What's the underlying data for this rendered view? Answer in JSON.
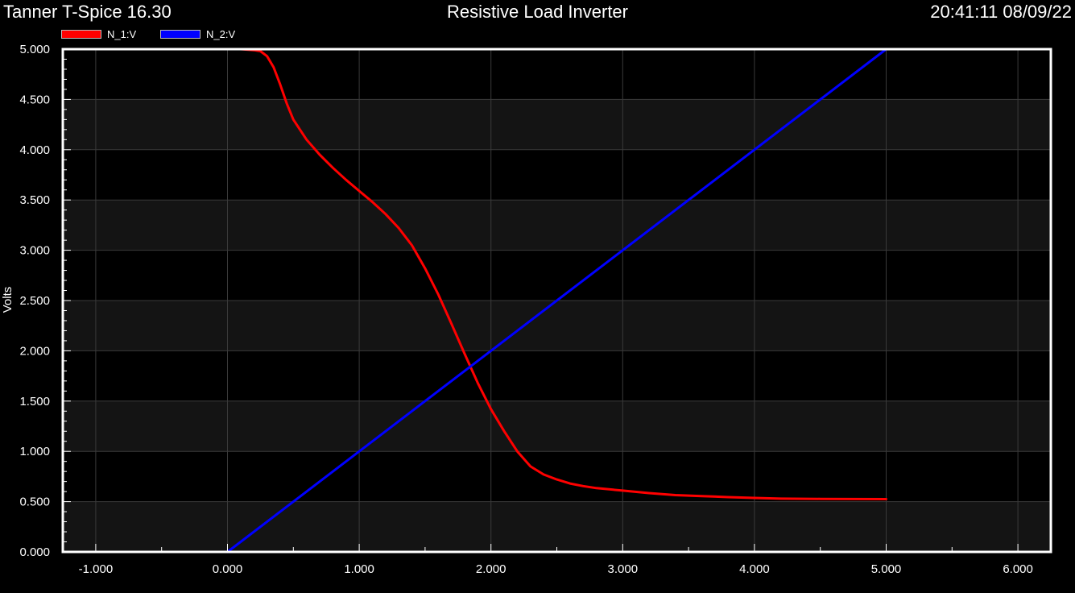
{
  "header": {
    "app_title": "Tanner T-Spice 16.30",
    "chart_title": "Resistive Load Inverter",
    "timestamp": "20:41:11 08/09/22"
  },
  "colors": {
    "background": "#000000",
    "plot_band": "#141414",
    "grid": "#3a3a3a",
    "frame": "#ffffff"
  },
  "chart_data": {
    "type": "line",
    "title": "Resistive Load Inverter",
    "xlabel": "",
    "ylabel": "Volts",
    "xlim": [
      -1.25,
      6.25
    ],
    "ylim": [
      0,
      5
    ],
    "x_ticks": [
      "-1.000",
      "0.000",
      "1.000",
      "2.000",
      "3.000",
      "4.000",
      "5.000",
      "6.000"
    ],
    "y_ticks": [
      "0.000",
      "0.500",
      "1.000",
      "1.500",
      "2.000",
      "2.500",
      "3.000",
      "3.500",
      "4.000",
      "4.500",
      "5.000"
    ],
    "grid": true,
    "legend_position": "top-left",
    "series": [
      {
        "name": "N_1:V",
        "color": "#ff0000",
        "x": [
          0,
          0.1,
          0.2,
          0.25,
          0.3,
          0.35,
          0.4,
          0.45,
          0.5,
          0.6,
          0.7,
          0.8,
          0.9,
          1.0,
          1.1,
          1.2,
          1.3,
          1.4,
          1.5,
          1.6,
          1.7,
          1.8,
          1.9,
          2.0,
          2.1,
          2.2,
          2.3,
          2.4,
          2.5,
          2.6,
          2.7,
          2.8,
          3.0,
          3.2,
          3.4,
          3.6,
          3.8,
          4.0,
          4.2,
          4.5,
          5.0
        ],
        "y": [
          5.0,
          5.0,
          4.99,
          4.98,
          4.93,
          4.82,
          4.65,
          4.46,
          4.3,
          4.1,
          3.95,
          3.82,
          3.7,
          3.59,
          3.48,
          3.36,
          3.22,
          3.05,
          2.82,
          2.56,
          2.27,
          1.97,
          1.68,
          1.42,
          1.2,
          1.0,
          0.85,
          0.77,
          0.72,
          0.68,
          0.655,
          0.635,
          0.61,
          0.585,
          0.565,
          0.555,
          0.545,
          0.537,
          0.53,
          0.527,
          0.525
        ]
      },
      {
        "name": "N_2:V",
        "color": "#0000ff",
        "x": [
          0,
          5
        ],
        "y": [
          0,
          5
        ]
      }
    ]
  }
}
